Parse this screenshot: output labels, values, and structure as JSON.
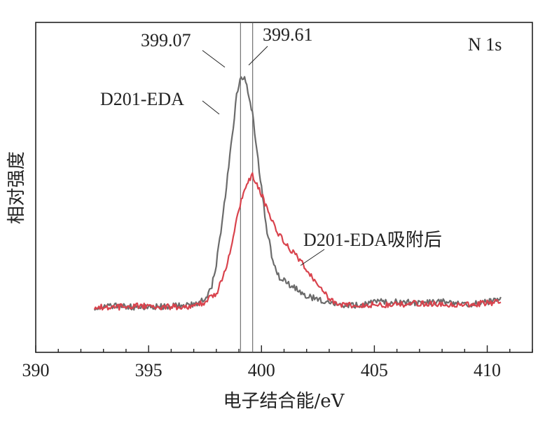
{
  "chart_data": {
    "type": "line",
    "panel_label": "N 1s",
    "xlabel": "电子结合能/eV",
    "ylabel": "相对强度",
    "xlim": [
      390,
      412
    ],
    "ylim": [
      0,
      1.0
    ],
    "x_ticks": [
      390,
      395,
      400,
      405,
      410
    ],
    "y_ticks_shown": false,
    "series": [
      {
        "name": "D201-EDA",
        "color": "#6b6b6b",
        "x": [
          392.6,
          393.5,
          394.5,
          395.5,
          396.5,
          397.0,
          397.5,
          397.8,
          398.0,
          398.3,
          398.6,
          398.9,
          399.07,
          399.3,
          399.6,
          399.9,
          400.2,
          400.5,
          400.8,
          401.1,
          401.5,
          402.0,
          402.5,
          403.0,
          403.5,
          404.0,
          404.5,
          405.0,
          406.0,
          407.0,
          408.0,
          409.0,
          410.0,
          410.6
        ],
        "y": [
          0.08,
          0.085,
          0.08,
          0.082,
          0.085,
          0.09,
          0.11,
          0.16,
          0.24,
          0.42,
          0.63,
          0.85,
          0.92,
          0.91,
          0.79,
          0.58,
          0.38,
          0.25,
          0.19,
          0.17,
          0.15,
          0.12,
          0.11,
          0.095,
          0.09,
          0.085,
          0.09,
          0.1,
          0.1,
          0.095,
          0.1,
          0.09,
          0.1,
          0.11
        ]
      },
      {
        "name": "D201-EDA吸附后",
        "color": "#d9434d",
        "x": [
          392.6,
          393.5,
          394.5,
          395.5,
          396.5,
          397.0,
          397.5,
          398.0,
          398.3,
          398.6,
          398.9,
          399.2,
          399.4,
          399.61,
          399.8,
          400.1,
          400.4,
          400.8,
          401.2,
          401.6,
          402.0,
          402.4,
          402.8,
          403.2,
          403.6,
          404.0,
          404.5,
          405.0,
          406.0,
          407.0,
          408.0,
          409.0,
          410.0,
          410.6
        ],
        "y": [
          0.08,
          0.08,
          0.085,
          0.082,
          0.08,
          0.085,
          0.1,
          0.13,
          0.19,
          0.28,
          0.4,
          0.5,
          0.54,
          0.56,
          0.53,
          0.47,
          0.4,
          0.34,
          0.3,
          0.26,
          0.22,
          0.17,
          0.13,
          0.1,
          0.09,
          0.085,
          0.09,
          0.09,
          0.09,
          0.095,
          0.09,
          0.09,
          0.095,
          0.1
        ]
      }
    ],
    "reference_lines": [
      399.07,
      399.61
    ],
    "annotations": [
      {
        "text": "399.07",
        "target_x": 399.07
      },
      {
        "text": "399.61",
        "target_x": 399.61
      },
      {
        "text": "D201-EDA",
        "series": "D201-EDA"
      },
      {
        "text": "D201-EDA吸附后",
        "series": "D201-EDA吸附后"
      }
    ]
  }
}
